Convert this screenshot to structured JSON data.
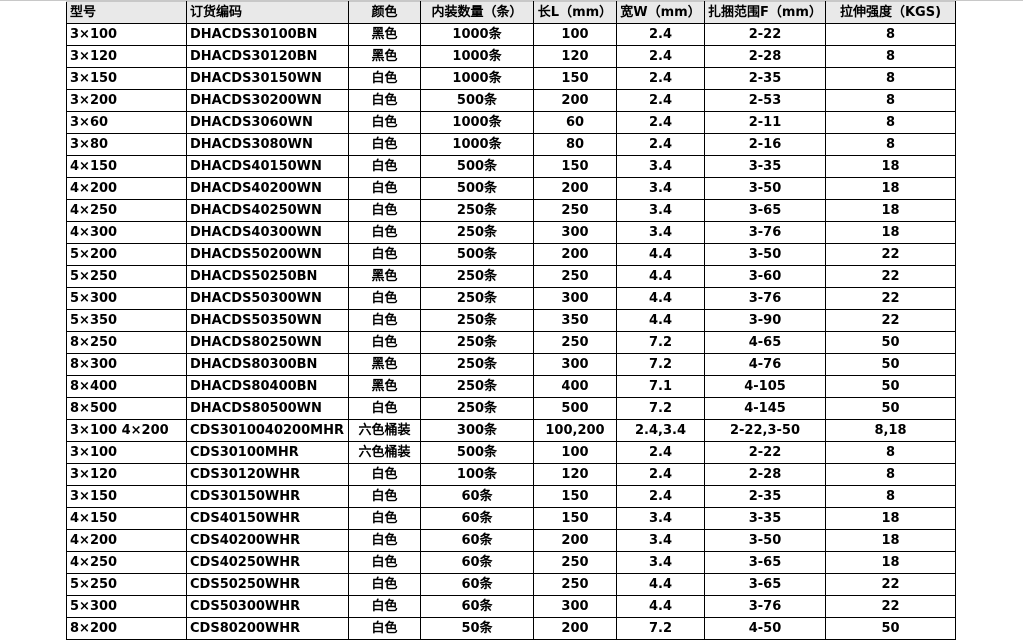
{
  "columns": [
    "型号",
    "订货编码",
    "颜色",
    "内装数量（条）",
    "长L（mm）",
    "宽W（mm）",
    "扎捆范围F（mm）",
    "拉伸强度（KGS)"
  ],
  "rows": [
    [
      "3×100",
      "DHACDS30100BN",
      "黑色",
      "1000条",
      "100",
      "2.4",
      "2-22",
      "8"
    ],
    [
      "3×120",
      "DHACDS30120BN",
      "黑色",
      "1000条",
      "120",
      "2.4",
      "2-28",
      "8"
    ],
    [
      "3×150",
      "DHACDS30150WN",
      "白色",
      "1000条",
      "150",
      "2.4",
      "2-35",
      "8"
    ],
    [
      "3×200",
      "DHACDS30200WN",
      "白色",
      "500条",
      "200",
      "2.4",
      "2-53",
      "8"
    ],
    [
      "3×60",
      "DHACDS3060WN",
      "白色",
      "1000条",
      "60",
      "2.4",
      "2-11",
      "8"
    ],
    [
      "3×80",
      "DHACDS3080WN",
      "白色",
      "1000条",
      "80",
      "2.4",
      "2-16",
      "8"
    ],
    [
      "4×150",
      "DHACDS40150WN",
      "白色",
      "500条",
      "150",
      "3.4",
      "3-35",
      "18"
    ],
    [
      "4×200",
      "DHACDS40200WN",
      "白色",
      "500条",
      "200",
      "3.4",
      "3-50",
      "18"
    ],
    [
      "4×250",
      "DHACDS40250WN",
      "白色",
      "250条",
      "250",
      "3.4",
      "3-65",
      "18"
    ],
    [
      "4×300",
      "DHACDS40300WN",
      "白色",
      "250条",
      "300",
      "3.4",
      "3-76",
      "18"
    ],
    [
      "5×200",
      "DHACDS50200WN",
      "白色",
      "500条",
      "200",
      "4.4",
      "3-50",
      "22"
    ],
    [
      "5×250",
      "DHACDS50250BN",
      "黑色",
      "250条",
      "250",
      "4.4",
      "3-60",
      "22"
    ],
    [
      "5×300",
      "DHACDS50300WN",
      "白色",
      "250条",
      "300",
      "4.4",
      "3-76",
      "22"
    ],
    [
      "5×350",
      "DHACDS50350WN",
      "白色",
      "250条",
      "350",
      "4.4",
      "3-90",
      "22"
    ],
    [
      "8×250",
      "DHACDS80250WN",
      "白色",
      "250条",
      "250",
      "7.2",
      "4-65",
      "50"
    ],
    [
      "8×300",
      "DHACDS80300BN",
      "黑色",
      "250条",
      "300",
      "7.2",
      "4-76",
      "50"
    ],
    [
      "8×400",
      "DHACDS80400BN",
      "黑色",
      "250条",
      "400",
      "7.1",
      "4-105",
      "50"
    ],
    [
      "8×500",
      "DHACDS80500WN",
      "白色",
      "250条",
      "500",
      "7.2",
      "4-145",
      "50"
    ],
    [
      "3×100 4×200",
      "CDS3010040200MHR",
      "六色桶装",
      "300条",
      "100,200",
      "2.4,3.4",
      "2-22,3-50",
      "8,18"
    ],
    [
      "3×100",
      "CDS30100MHR",
      "六色桶装",
      "500条",
      "100",
      "2.4",
      "2-22",
      "8"
    ],
    [
      "3×120",
      "CDS30120WHR",
      "白色",
      "100条",
      "120",
      "2.4",
      "2-28",
      "8"
    ],
    [
      "3×150",
      "CDS30150WHR",
      "白色",
      "60条",
      "150",
      "2.4",
      "2-35",
      "8"
    ],
    [
      "4×150",
      "CDS40150WHR",
      "白色",
      "60条",
      "150",
      "3.4",
      "3-35",
      "18"
    ],
    [
      "4×200",
      "CDS40200WHR",
      "白色",
      "60条",
      "200",
      "3.4",
      "3-50",
      "18"
    ],
    [
      "4×250",
      "CDS40250WHR",
      "白色",
      "60条",
      "250",
      "3.4",
      "3-65",
      "18"
    ],
    [
      "5×250",
      "CDS50250WHR",
      "白色",
      "60条",
      "250",
      "4.4",
      "3-65",
      "22"
    ],
    [
      "5×300",
      "CDS50300WHR",
      "白色",
      "60条",
      "300",
      "4.4",
      "3-76",
      "22"
    ],
    [
      "8×200",
      "CDS80200WHR",
      "白色",
      "50条",
      "200",
      "7.2",
      "4-50",
      "50"
    ]
  ]
}
